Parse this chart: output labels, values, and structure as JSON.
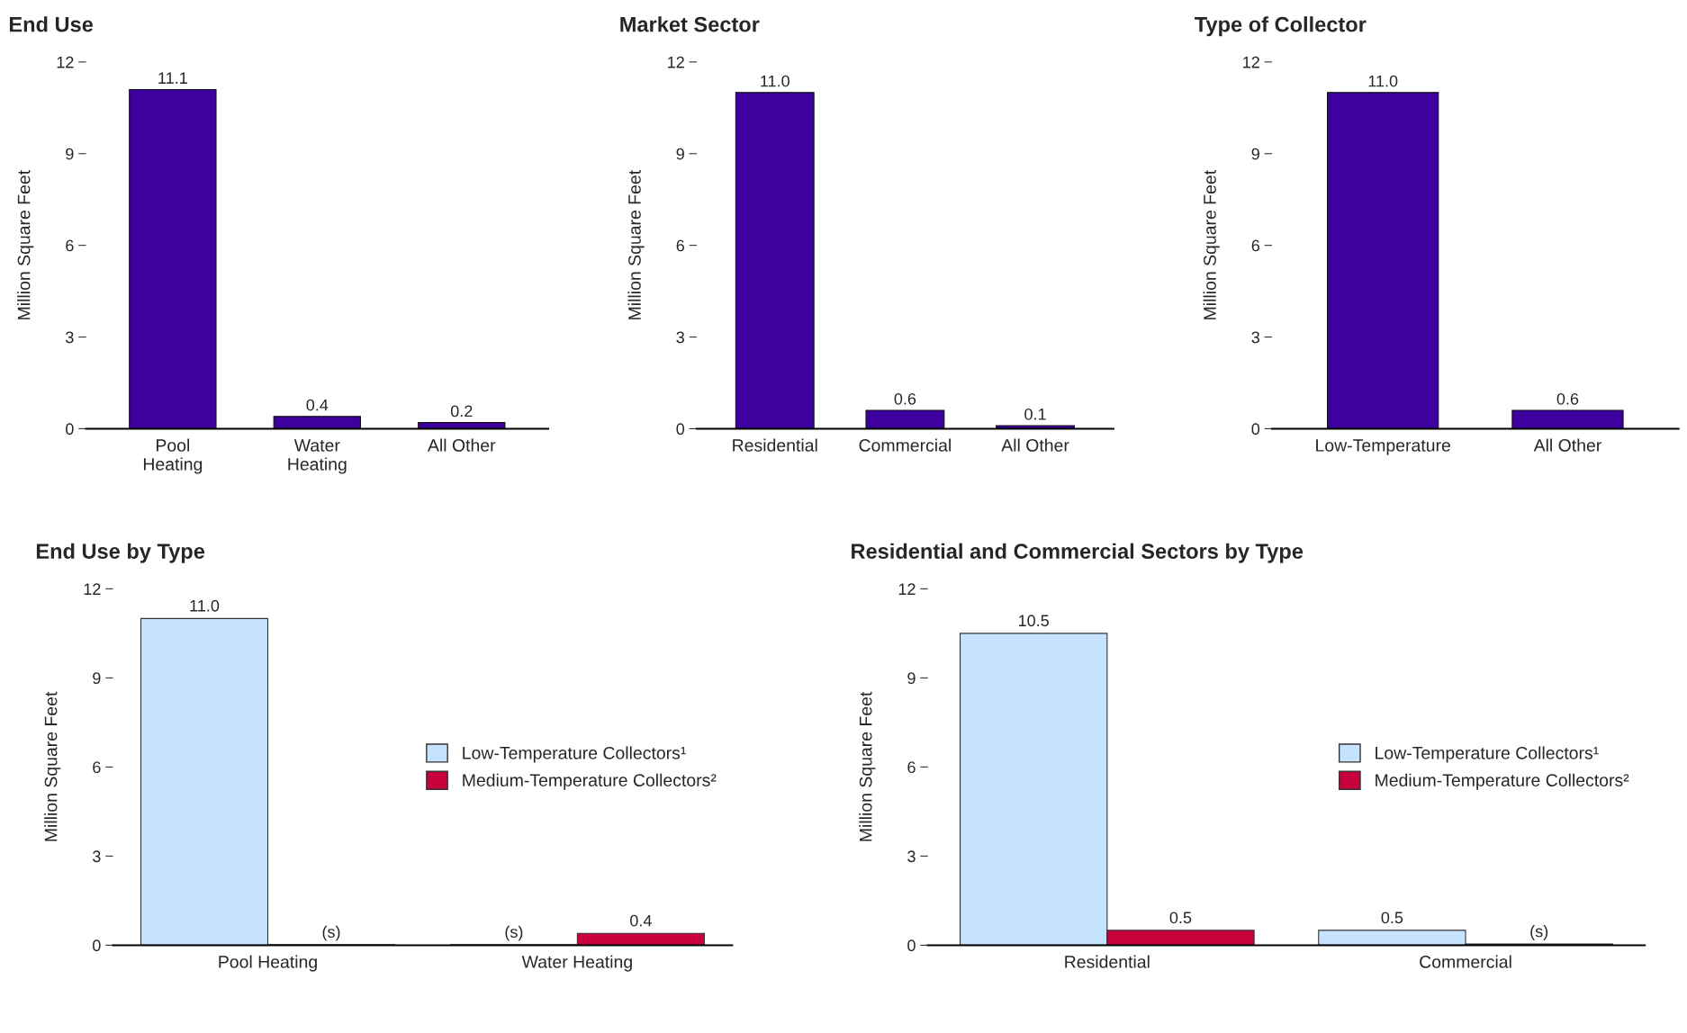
{
  "chart_data": [
    {
      "type": "bar",
      "title": "End Use",
      "ylabel": "Million Square Feet",
      "categories": [
        "Pool\nHeating",
        "Water\nHeating",
        "All Other"
      ],
      "values": [
        11.1,
        0.4,
        0.2
      ],
      "value_labels": [
        "11.1",
        "0.4",
        "0.2"
      ],
      "color": "#3f00a0",
      "ylim": [
        0,
        12
      ],
      "yticks": [
        0,
        3,
        6,
        9,
        12
      ],
      "grid": false,
      "legend": false
    },
    {
      "type": "bar",
      "title": "Market Sector",
      "ylabel": "Million Square Feet",
      "categories": [
        "Residential",
        "Commercial",
        "All Other"
      ],
      "values": [
        11.0,
        0.6,
        0.1
      ],
      "value_labels": [
        "11.0",
        "0.6",
        "0.1"
      ],
      "color": "#3f00a0",
      "ylim": [
        0,
        12
      ],
      "yticks": [
        0,
        3,
        6,
        9,
        12
      ],
      "grid": false,
      "legend": false
    },
    {
      "type": "bar",
      "title": "Type of Collector",
      "ylabel": "Million Square Feet",
      "categories": [
        "Low-Temperature",
        "All Other"
      ],
      "values": [
        11.0,
        0.6
      ],
      "value_labels": [
        "11.0",
        "0.6"
      ],
      "color": "#3f00a0",
      "ylim": [
        0,
        12
      ],
      "yticks": [
        0,
        3,
        6,
        9,
        12
      ],
      "grid": false,
      "legend": false
    },
    {
      "type": "bar",
      "title": "End Use by Type",
      "ylabel": "Million Square Feet",
      "categories": [
        "Pool Heating",
        "Water Heating"
      ],
      "series": [
        {
          "name": "Low-Temperature Collectors¹",
          "color": "#c5e3fe",
          "values": [
            11.0,
            0.02
          ],
          "value_labels": [
            "11.0",
            "(s)"
          ]
        },
        {
          "name": "Medium-Temperature Collectors²",
          "color": "#c8003c",
          "values": [
            0.02,
            0.4
          ],
          "value_labels": [
            "(s)",
            "0.4"
          ]
        }
      ],
      "ylim": [
        0,
        12
      ],
      "yticks": [
        0,
        3,
        6,
        9,
        12
      ],
      "grid": false,
      "legend": "right"
    },
    {
      "type": "bar",
      "title": "Residential and Commercial Sectors by Type",
      "ylabel": "Million Square Feet",
      "categories": [
        "Residential",
        "Commercial"
      ],
      "series": [
        {
          "name": "Low-Temperature Collectors¹",
          "color": "#c5e3fe",
          "values": [
            10.5,
            0.5
          ],
          "value_labels": [
            "10.5",
            "0.5"
          ]
        },
        {
          "name": "Medium-Temperature Collectors²",
          "color": "#c8003c",
          "values": [
            0.5,
            0.04
          ],
          "value_labels": [
            "0.5",
            "(s)"
          ]
        }
      ],
      "ylim": [
        0,
        12
      ],
      "yticks": [
        0,
        3,
        6,
        9,
        12
      ],
      "grid": false,
      "legend": "right"
    }
  ]
}
